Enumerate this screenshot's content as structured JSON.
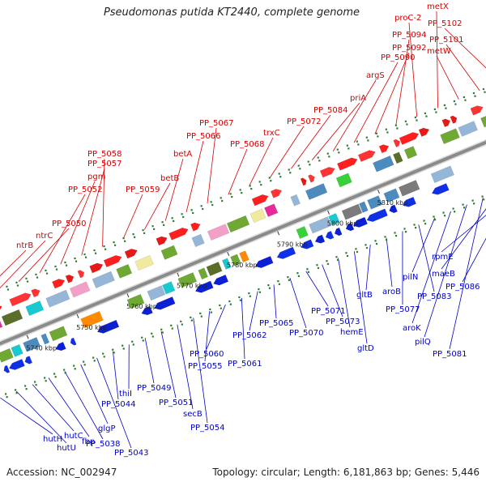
{
  "title": "Pseudomonas putida KT2440, complete genome",
  "accession": "Accession: NC_002947",
  "summary": "Topology: circular; Length: 6,181,863 bp; Genes: 5,446",
  "colors": {
    "top_labels": "#d40000",
    "bottom_labels": "#0000cc",
    "backbone": "#8a8a8a"
  },
  "ticks": [
    "5740 kbp",
    "5750 kbp",
    "5760 kbp",
    "5770 kbp",
    "5780 kbp",
    "5790 kbp",
    "5800 kbp",
    "5810 kbp"
  ],
  "top_labels": [
    "ntrB",
    "ntrC",
    "PP_5050",
    "PP_5052",
    "pgm",
    "PP_5057",
    "PP_5058",
    "PP_5059",
    "betB",
    "betA",
    "PP_5066",
    "PP_5067",
    "PP_5068",
    "trxC",
    "PP_5072",
    "PP_5084",
    "priA",
    "argS",
    "PP_5090",
    "PP_5092",
    "PP_5094",
    "proC-2",
    "metX",
    "metW",
    "PP_5101",
    "PP_5102"
  ],
  "bottom_labels": [
    "hutH",
    "hutU",
    "hutC",
    "fbp",
    "PP_5038",
    "glgP",
    "PP_5043",
    "PP_5044",
    "thiI",
    "PP_5049",
    "PP_5051",
    "secB",
    "PP_5054",
    "PP_5055",
    "PP_5060",
    "PP_5061",
    "PP_5062",
    "PP_5065",
    "PP_5070",
    "PP_5071",
    "PP_5073",
    "hemE",
    "gltD",
    "gltB",
    "aroB",
    "PP_5077",
    "PP_5083",
    "pilN",
    "aroK",
    "pilQ",
    "PP_5081",
    "maeB",
    "PP_5086",
    "rpmE"
  ]
}
